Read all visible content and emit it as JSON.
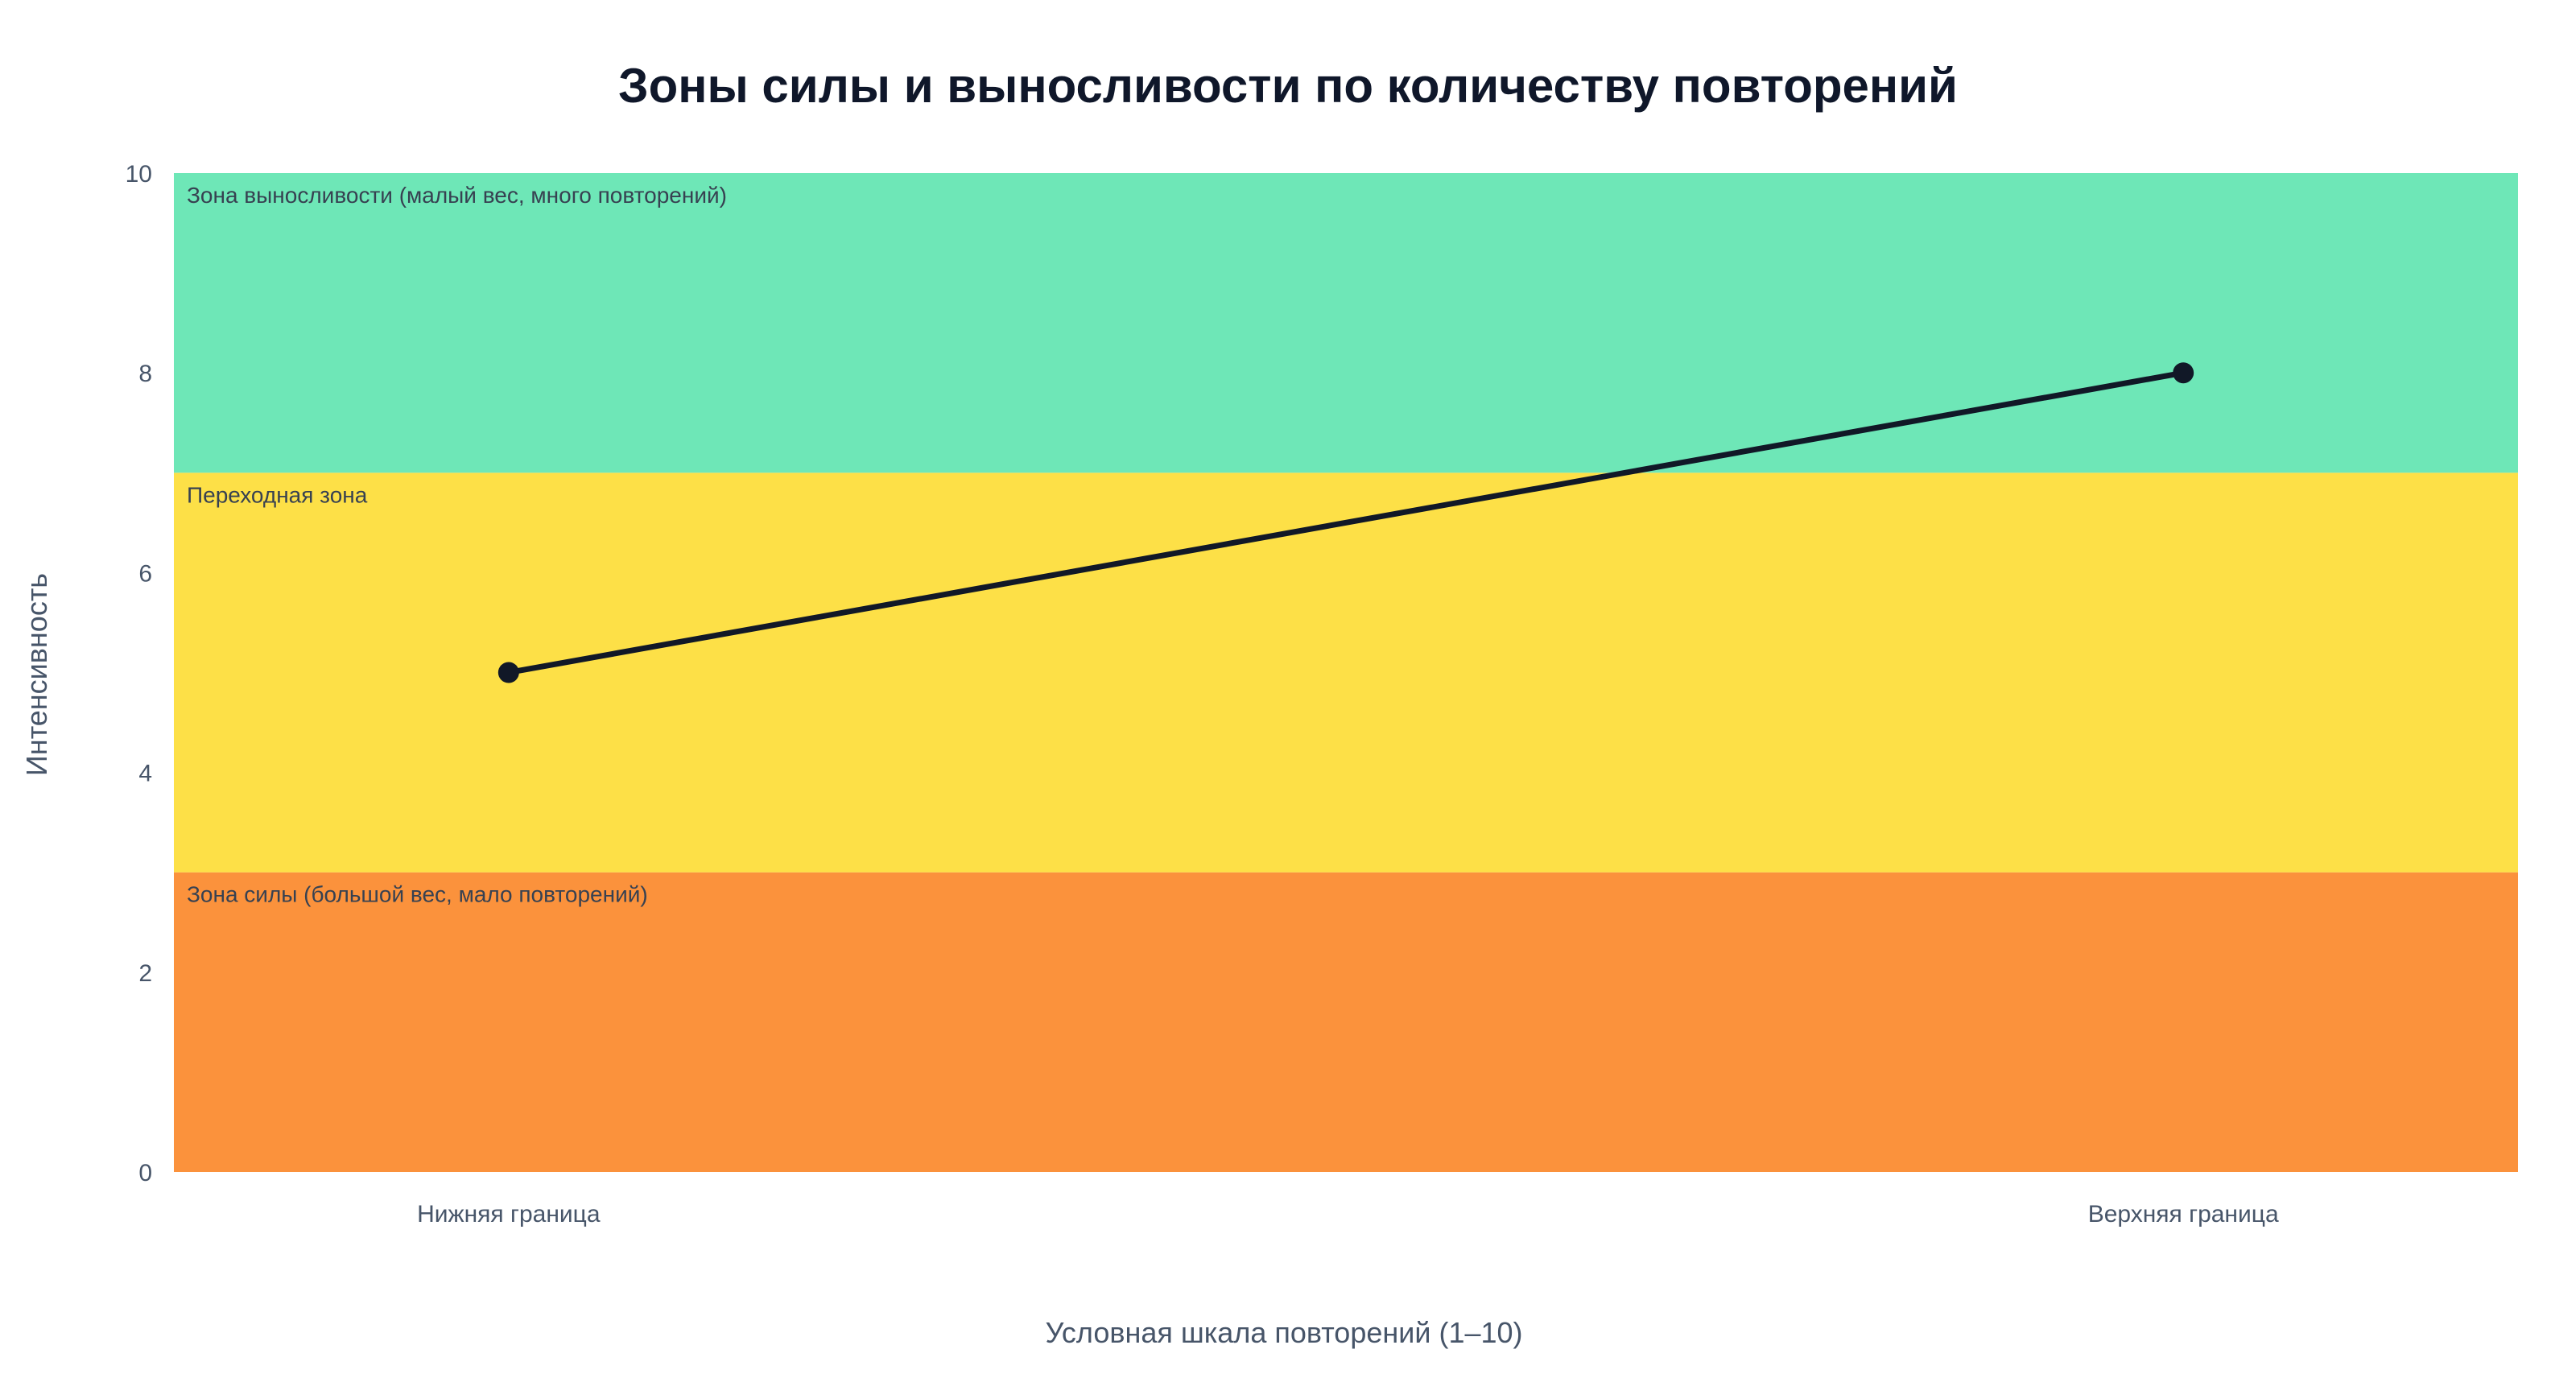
{
  "chart_data": {
    "type": "line",
    "title": "Зоны силы и выносливости по количеству повторений",
    "xlabel": "Условная шкала повторений (1–10)",
    "ylabel": "Интенсивность",
    "categories": [
      "Нижняя граница",
      "Верхняя граница"
    ],
    "ylim": [
      0,
      10
    ],
    "yticks": [
      0,
      2,
      4,
      6,
      8,
      10
    ],
    "ytick_labels": [
      "0",
      "2",
      "4",
      "6",
      "8",
      "10"
    ],
    "grid": false,
    "series": [
      {
        "values": [
          5,
          8
        ],
        "color": "#111827"
      }
    ],
    "zones": [
      {
        "label": "Зона силы (большой вес, мало повторений)",
        "y0": 0,
        "y1": 3,
        "color": "#fb923c"
      },
      {
        "label": "Переходная зона",
        "y0": 3,
        "y1": 7,
        "color": "#fde047"
      },
      {
        "label": "Зона выносливости (малый вес, много повторений)",
        "y0": 7,
        "y1": 10,
        "color": "#6ee7b7"
      }
    ]
  }
}
